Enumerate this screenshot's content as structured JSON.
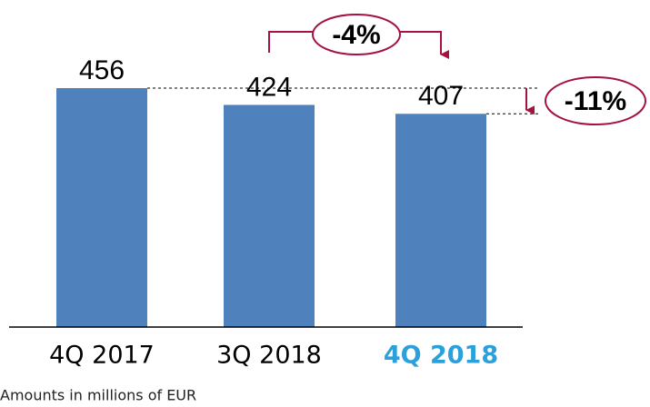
{
  "chart_data": {
    "type": "bar",
    "categories": [
      "4Q 2017",
      "3Q 2018",
      "4Q 2018"
    ],
    "values": [
      456,
      424,
      407
    ],
    "color": "#4f81bd",
    "annotations": [
      "-4%",
      "-11%"
    ],
    "footnote": "Amounts in millions of EUR"
  }
}
